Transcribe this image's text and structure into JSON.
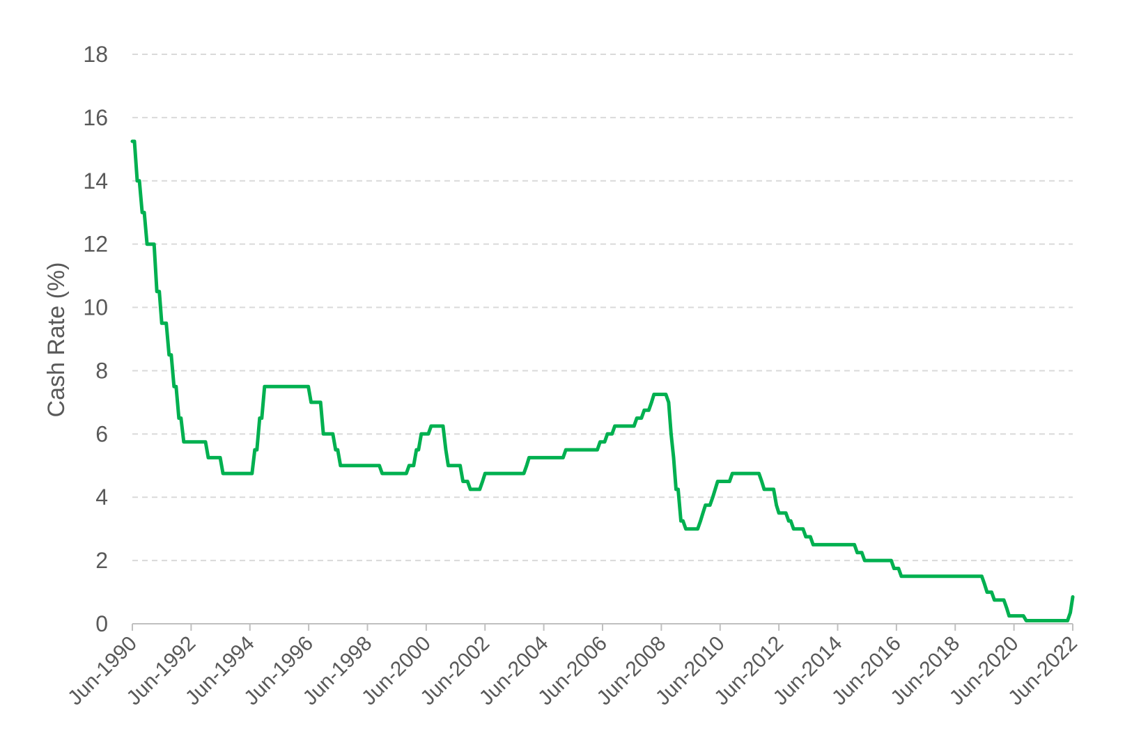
{
  "chart_data": {
    "type": "line",
    "title": "",
    "xlabel": "",
    "ylabel": "Cash Rate (%)",
    "ylim": [
      0,
      18
    ],
    "yticks": [
      0,
      2,
      4,
      6,
      8,
      10,
      12,
      14,
      16,
      18
    ],
    "xlim": [
      "1990-06",
      "2022-06"
    ],
    "xtick_labels": [
      "Jun-1990",
      "Jun-1992",
      "Jun-1994",
      "Jun-1996",
      "Jun-1998",
      "Jun-2000",
      "Jun-2002",
      "Jun-2004",
      "Jun-2006",
      "Jun-2008",
      "Jun-2010",
      "Jun-2012",
      "Jun-2014",
      "Jun-2016",
      "Jun-2018",
      "Jun-2020",
      "Jun-2022"
    ],
    "grid": "horizontal dashed",
    "legend": "none",
    "colors": {
      "line": "#00b050",
      "grid": "#d9d9d9",
      "text": "#595959",
      "axis": "#bfbfbf"
    },
    "series": [
      {
        "points": [
          [
            "1990-06",
            15.25
          ],
          [
            "1990-08",
            14.0
          ],
          [
            "1990-10",
            13.0
          ],
          [
            "1990-12",
            12.0
          ],
          [
            "1991-04",
            10.5
          ],
          [
            "1991-05",
            10.5
          ],
          [
            "1991-06",
            9.5
          ],
          [
            "1991-09",
            8.5
          ],
          [
            "1991-11",
            7.5
          ],
          [
            "1992-01",
            6.5
          ],
          [
            "1992-03",
            5.75
          ],
          [
            "1993-01",
            5.25
          ],
          [
            "1993-07",
            4.75
          ],
          [
            "1994-08",
            5.5
          ],
          [
            "1994-10",
            6.5
          ],
          [
            "1994-12",
            7.5
          ],
          [
            "1996-07",
            7.0
          ],
          [
            "1996-12",
            6.0
          ],
          [
            "1997-05",
            5.5
          ],
          [
            "1997-07",
            5.0
          ],
          [
            "1998-12",
            4.75
          ],
          [
            "1999-11",
            5.0
          ],
          [
            "2000-02",
            5.5
          ],
          [
            "2000-04",
            6.0
          ],
          [
            "2000-08",
            6.25
          ],
          [
            "2001-02",
            5.5
          ],
          [
            "2001-03",
            5.0
          ],
          [
            "2001-09",
            4.5
          ],
          [
            "2001-12",
            4.25
          ],
          [
            "2002-05",
            4.5
          ],
          [
            "2002-06",
            4.75
          ],
          [
            "2003-11",
            5.0
          ],
          [
            "2003-12",
            5.25
          ],
          [
            "2005-03",
            5.5
          ],
          [
            "2006-05",
            5.75
          ],
          [
            "2006-08",
            6.0
          ],
          [
            "2006-11",
            6.25
          ],
          [
            "2007-08",
            6.5
          ],
          [
            "2007-11",
            6.75
          ],
          [
            "2008-02",
            7.0
          ],
          [
            "2008-03",
            7.25
          ],
          [
            "2008-09",
            7.0
          ],
          [
            "2008-10",
            6.0
          ],
          [
            "2008-11",
            5.25
          ],
          [
            "2008-12",
            4.25
          ],
          [
            "2009-02",
            3.25
          ],
          [
            "2009-04",
            3.0
          ],
          [
            "2009-10",
            3.25
          ],
          [
            "2009-11",
            3.5
          ],
          [
            "2009-12",
            3.75
          ],
          [
            "2010-03",
            4.0
          ],
          [
            "2010-04",
            4.25
          ],
          [
            "2010-05",
            4.5
          ],
          [
            "2010-11",
            4.75
          ],
          [
            "2011-11",
            4.5
          ],
          [
            "2011-12",
            4.25
          ],
          [
            "2012-05",
            3.75
          ],
          [
            "2012-06",
            3.5
          ],
          [
            "2012-10",
            3.25
          ],
          [
            "2012-12",
            3.0
          ],
          [
            "2013-05",
            2.75
          ],
          [
            "2013-08",
            2.5
          ],
          [
            "2015-02",
            2.25
          ],
          [
            "2015-05",
            2.0
          ],
          [
            "2016-05",
            1.75
          ],
          [
            "2016-08",
            1.5
          ],
          [
            "2019-06",
            1.25
          ],
          [
            "2019-07",
            1.0
          ],
          [
            "2019-10",
            0.75
          ],
          [
            "2020-03",
            0.5
          ],
          [
            "2020-04",
            0.25
          ],
          [
            "2020-11",
            0.1
          ],
          [
            "2022-05",
            0.35
          ],
          [
            "2022-06",
            0.85
          ]
        ]
      }
    ]
  }
}
